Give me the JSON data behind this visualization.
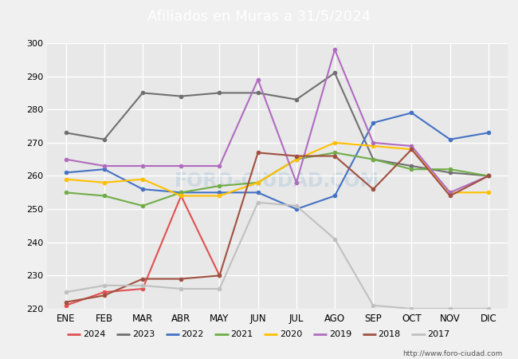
{
  "title": "Afiliados en Muras a 31/5/2024",
  "ylim": [
    220,
    300
  ],
  "yticks": [
    220,
    230,
    240,
    250,
    260,
    270,
    280,
    290,
    300
  ],
  "months": [
    "ENE",
    "FEB",
    "MAR",
    "ABR",
    "MAY",
    "JUN",
    "JUL",
    "AGO",
    "SEP",
    "OCT",
    "NOV",
    "DIC"
  ],
  "url": "http://www.foro-ciudad.com",
  "series": [
    {
      "year": "2024",
      "color": "#e05050",
      "data": [
        221,
        225,
        226,
        254,
        230,
        null,
        null,
        null,
        null,
        null,
        null,
        null
      ]
    },
    {
      "year": "2023",
      "color": "#707070",
      "data": [
        273,
        271,
        285,
        284,
        285,
        285,
        283,
        291,
        265,
        263,
        261,
        260
      ]
    },
    {
      "year": "2022",
      "color": "#4472c4",
      "data": [
        261,
        262,
        256,
        255,
        255,
        255,
        250,
        254,
        276,
        279,
        271,
        273
      ]
    },
    {
      "year": "2021",
      "color": "#70ad47",
      "data": [
        255,
        254,
        251,
        255,
        257,
        258,
        265,
        267,
        265,
        262,
        262,
        260
      ]
    },
    {
      "year": "2020",
      "color": "#ffc000",
      "data": [
        259,
        258,
        259,
        254,
        254,
        258,
        265,
        270,
        269,
        268,
        255,
        255
      ]
    },
    {
      "year": "2019",
      "color": "#b06cbf",
      "data": [
        265,
        263,
        263,
        263,
        263,
        289,
        258,
        298,
        270,
        269,
        255,
        260
      ]
    },
    {
      "year": "2018",
      "color": "#a05040",
      "data": [
        222,
        224,
        229,
        229,
        230,
        267,
        266,
        266,
        256,
        268,
        254,
        260
      ]
    },
    {
      "year": "2017",
      "color": "#c0c0c0",
      "data": [
        225,
        227,
        227,
        226,
        226,
        252,
        251,
        241,
        221,
        220,
        220,
        220
      ]
    }
  ],
  "fig_bg": "#f0f0f0",
  "plot_bg": "#e8e8e8",
  "grid_color": "#ffffff",
  "title_bg": "#4d8fc4",
  "title_fg": "#ffffff",
  "legend_years": [
    "2024",
    "2023",
    "2022",
    "2021",
    "2020",
    "2019",
    "2018",
    "2017"
  ]
}
